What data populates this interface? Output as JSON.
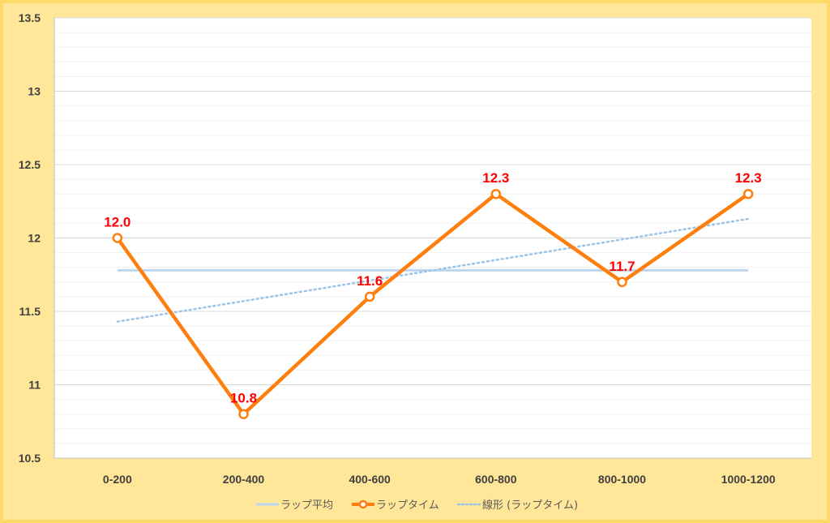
{
  "chart_data": {
    "type": "line",
    "categories": [
      "0-200",
      "200-400",
      "400-600",
      "600-800",
      "800-1000",
      "1000-1200"
    ],
    "ylim": [
      10.5,
      13.5
    ],
    "y_ticks": [
      "10.5",
      "11",
      "11.5",
      "12",
      "12.5",
      "13",
      "13.5"
    ],
    "grid": true,
    "legend_position": "bottom",
    "series": [
      {
        "name": "ラップ平均",
        "type": "line",
        "values": [
          11.78,
          11.78,
          11.78,
          11.78,
          11.78,
          11.78
        ],
        "color": "#BDD7EE"
      },
      {
        "name": "ラップタイム",
        "type": "line-markers",
        "values": [
          12.0,
          10.8,
          11.6,
          12.3,
          11.7,
          12.3
        ],
        "labels": [
          "12.0",
          "10.8",
          "11.6",
          "12.3",
          "11.7",
          "12.3"
        ],
        "color": "#FF7F0E",
        "label_color": "#FF0000"
      },
      {
        "name": "線形 (ラップタイム)",
        "type": "trendline-dotted",
        "values": [
          11.43,
          11.57,
          11.71,
          11.85,
          11.99,
          12.13
        ],
        "color": "#9DC3E6"
      }
    ]
  }
}
